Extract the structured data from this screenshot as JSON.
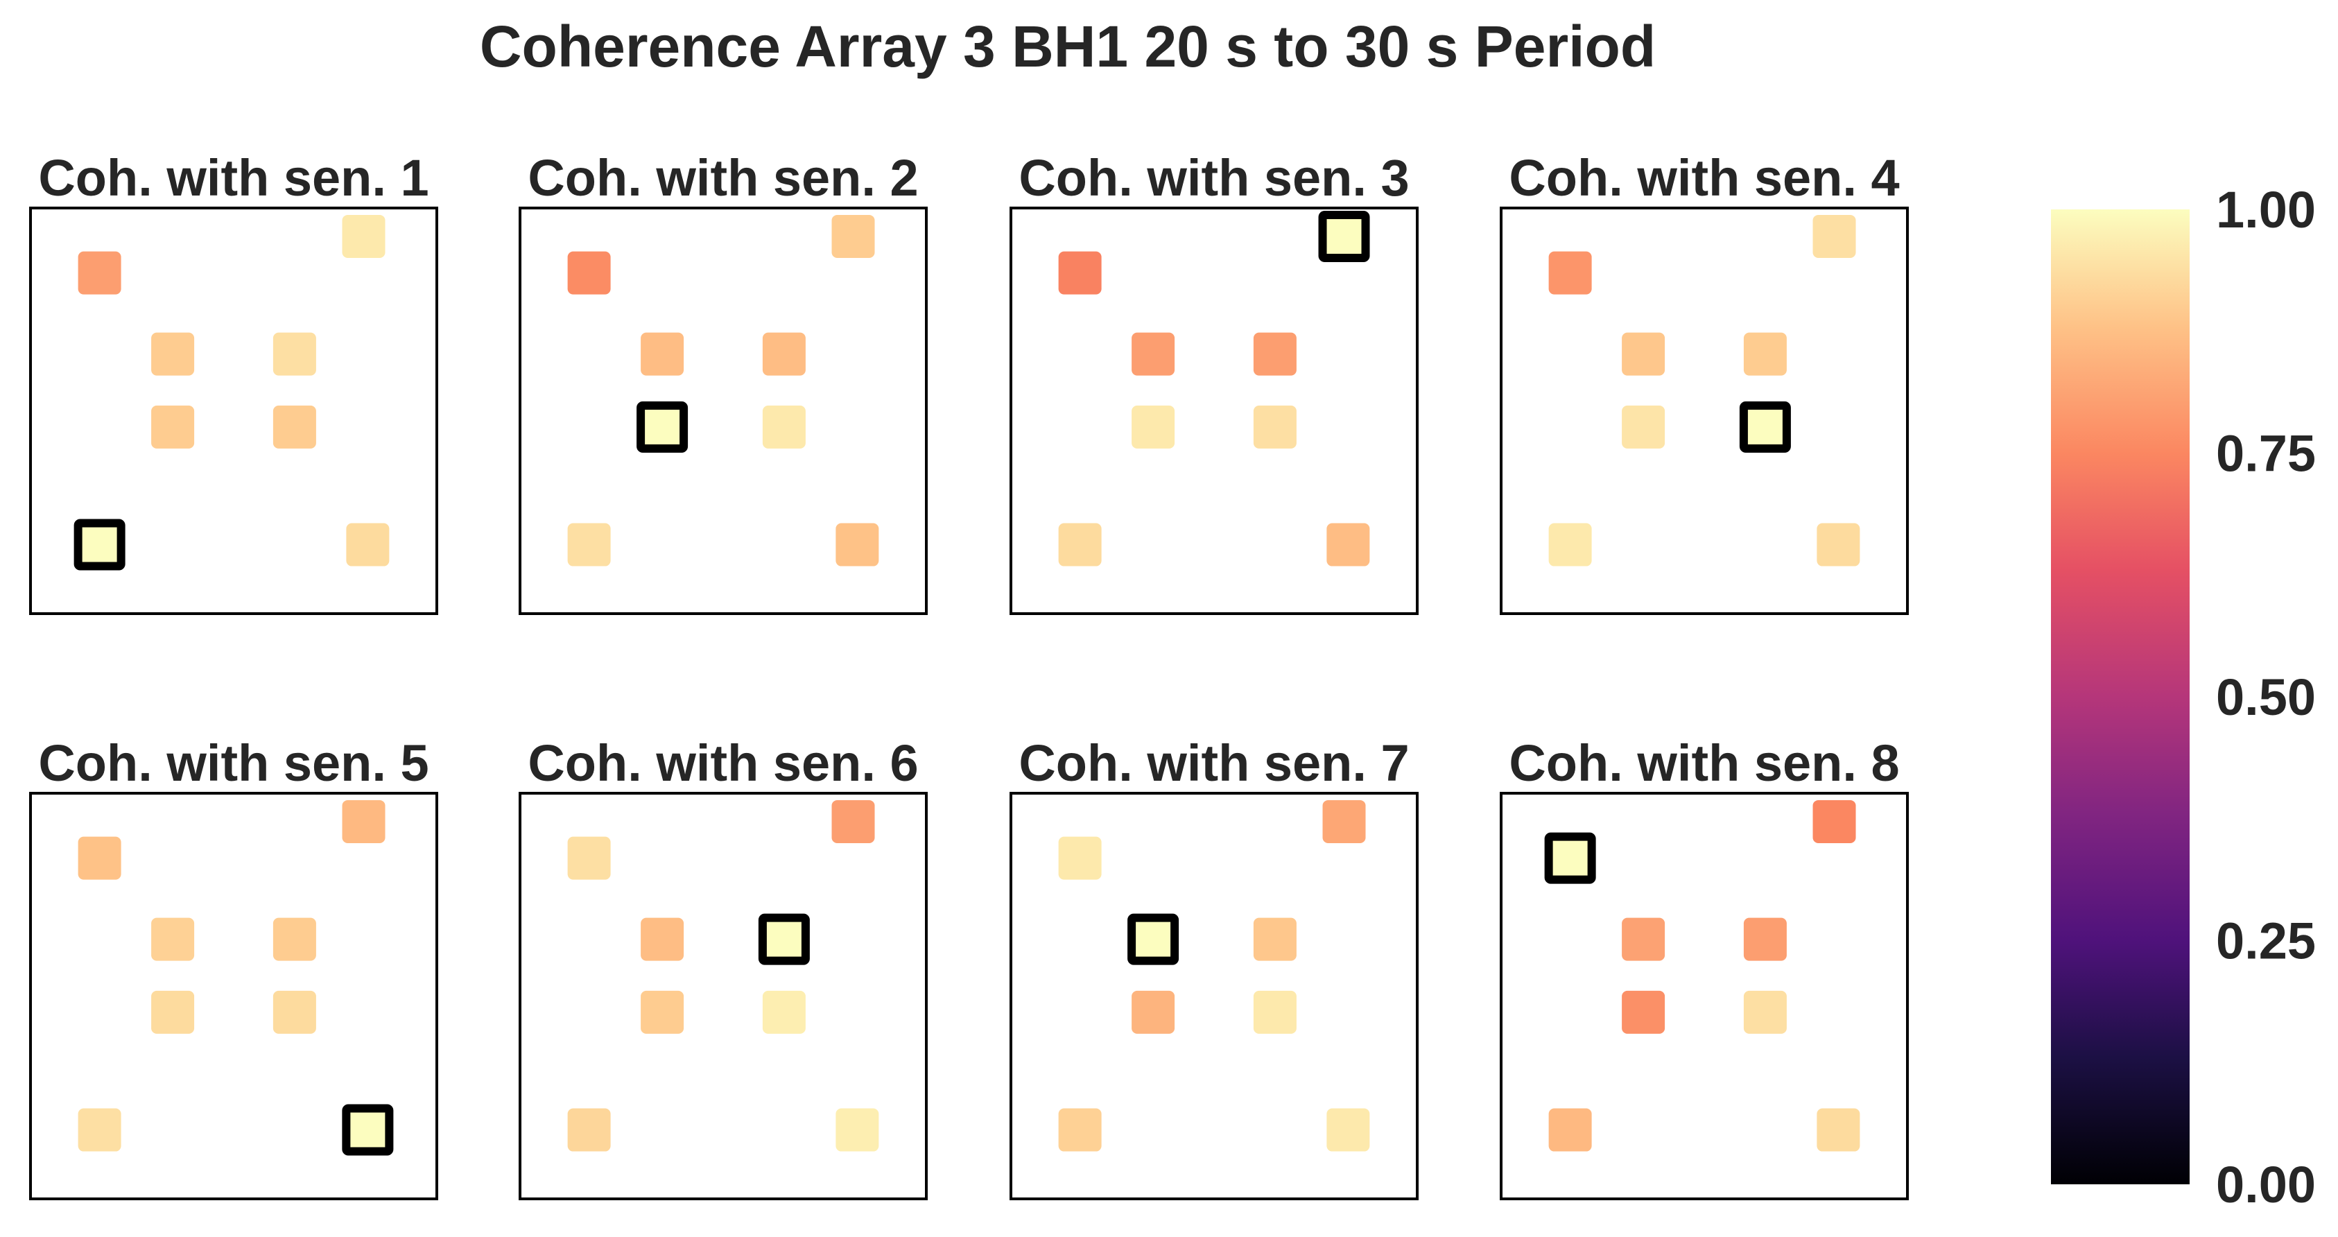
{
  "chart_data": {
    "type": "heatmap",
    "title": "Coherence Array 3 BH1 20 s to 30 s Period",
    "colormap": "magma",
    "value_range": [
      0,
      1
    ],
    "colorbar": {
      "position": "right",
      "ticks": [
        0,
        0.25,
        0.5,
        0.75,
        1.0
      ],
      "tick_labels": [
        "0.00",
        "0.25",
        "0.50",
        "0.75",
        "1.00"
      ]
    },
    "grid": false,
    "sensor_positions": [
      {
        "sensor": 1,
        "x": 0.17,
        "y": 0.17
      },
      {
        "sensor": 2,
        "x": 0.35,
        "y": 0.46
      },
      {
        "sensor": 3,
        "x": 0.82,
        "y": 0.93
      },
      {
        "sensor": 4,
        "x": 0.65,
        "y": 0.46
      },
      {
        "sensor": 5,
        "x": 0.83,
        "y": 0.17
      },
      {
        "sensor": 6,
        "x": 0.65,
        "y": 0.64
      },
      {
        "sensor": 7,
        "x": 0.35,
        "y": 0.64
      },
      {
        "sensor": 8,
        "x": 0.17,
        "y": 0.84
      }
    ],
    "panels": [
      {
        "label": "Coh. with sen. 1",
        "reference_sensor": 1,
        "values": [
          1.0,
          0.9,
          0.96,
          0.9,
          0.93,
          0.94,
          0.9,
          0.8
        ]
      },
      {
        "label": "Coh. with sen. 2",
        "reference_sensor": 2,
        "values": [
          0.94,
          1.0,
          0.9,
          0.96,
          0.88,
          0.87,
          0.87,
          0.76
        ]
      },
      {
        "label": "Coh. with sen. 3",
        "reference_sensor": 3,
        "values": [
          0.93,
          0.96,
          1.0,
          0.94,
          0.87,
          0.8,
          0.8,
          0.74
        ]
      },
      {
        "label": "Coh. with sen. 4",
        "reference_sensor": 4,
        "values": [
          0.96,
          0.95,
          0.94,
          1.0,
          0.93,
          0.9,
          0.89,
          0.78
        ]
      },
      {
        "label": "Coh. with sen. 5",
        "reference_sensor": 5,
        "values": [
          0.94,
          0.93,
          0.86,
          0.93,
          1.0,
          0.9,
          0.91,
          0.88
        ]
      },
      {
        "label": "Coh. with sen. 6",
        "reference_sensor": 6,
        "values": [
          0.92,
          0.9,
          0.8,
          0.97,
          0.97,
          1.0,
          0.87,
          0.94
        ]
      },
      {
        "label": "Coh. with sen. 7",
        "reference_sensor": 7,
        "values": [
          0.91,
          0.85,
          0.82,
          0.96,
          0.96,
          0.89,
          1.0,
          0.96
        ]
      },
      {
        "label": "Coh. with sen. 8",
        "reference_sensor": 8,
        "values": [
          0.86,
          0.77,
          0.75,
          0.94,
          0.93,
          0.8,
          0.81,
          1.0
        ]
      }
    ]
  }
}
